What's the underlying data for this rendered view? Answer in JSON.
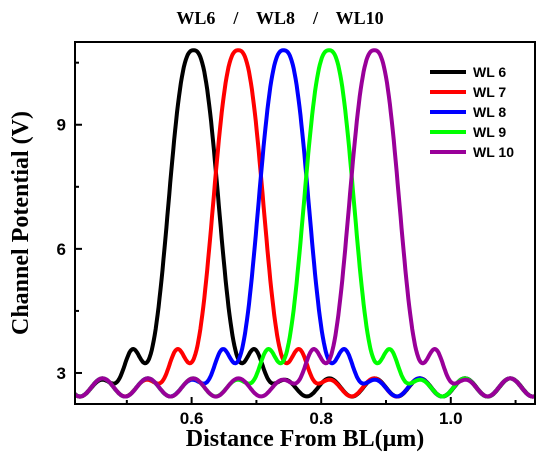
{
  "chart_data": {
    "type": "line",
    "title": "WL6    /    WL8    /    WL10",
    "xlabel": "Distance From BL(μm)",
    "ylabel": "Channel Potential (V)",
    "xlim": [
      0.42,
      1.13
    ],
    "ylim": [
      2.25,
      11.0
    ],
    "xticks": [
      0.6,
      0.8,
      1.0
    ],
    "xtick_labels": [
      "0.6",
      "0.8",
      "1.0"
    ],
    "yticks": [
      3,
      6,
      9
    ],
    "ytick_labels": [
      "3",
      "6",
      "9"
    ],
    "grid": false,
    "legend_position": "top-right",
    "series": [
      {
        "name": "WL 6",
        "color": "#000000",
        "peak_x": 0.603,
        "peak_y": 10.8,
        "baseline": 2.65
      },
      {
        "name": "WL 7",
        "color": "#ff0000",
        "peak_x": 0.672,
        "peak_y": 10.8,
        "baseline": 2.65
      },
      {
        "name": "WL 8",
        "color": "#0000ff",
        "peak_x": 0.742,
        "peak_y": 10.8,
        "baseline": 2.65
      },
      {
        "name": "WL 9",
        "color": "#00ff00",
        "peak_x": 0.812,
        "peak_y": 10.8,
        "baseline": 2.65
      },
      {
        "name": "WL 10",
        "color": "#990099",
        "peak_x": 0.882,
        "peak_y": 10.8,
        "baseline": 2.65
      }
    ]
  }
}
